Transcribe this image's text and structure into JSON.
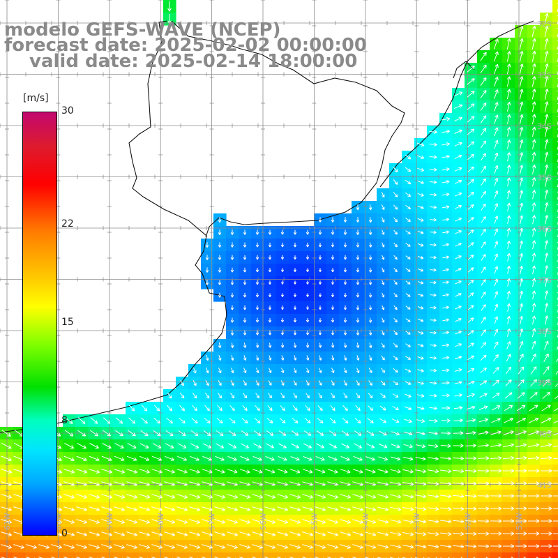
{
  "title": {
    "line1": "modelo GEFS-WAVE (NCEP)",
    "line2": "forecast date: 2025-02-02 00:00:00",
    "line3": "valid date: 2025-02-14 18:00:00"
  },
  "colorbar": {
    "unit": "[m/s]",
    "min": 0,
    "max": 30,
    "ticks": [
      {
        "value": 30,
        "label": "30"
      },
      {
        "value": 22,
        "label": "22"
      },
      {
        "value": 15,
        "label": "15"
      },
      {
        "value": 8,
        "label": "8"
      },
      {
        "value": 0,
        "label": "0"
      }
    ],
    "colors": [
      "#c2076f",
      "#ff0000",
      "#ff7a00",
      "#ffff00",
      "#00e000",
      "#00ffff",
      "#00a6ff",
      "#0000ff"
    ]
  },
  "map": {
    "field": "wind speed and direction",
    "longitude_labels": [
      "61W",
      "60W",
      "59W",
      "58W",
      "57W",
      "56W",
      "55W",
      "54W",
      "53W",
      "52W",
      "51W"
    ],
    "latitude_labels": [
      "32S",
      "33S",
      "34S",
      "35S",
      "36S",
      "37S",
      "38S",
      "39S",
      "40S",
      "41S"
    ],
    "colors": {
      "land": "#ffffff",
      "coast": "#111111",
      "grid": "#8c8c8c",
      "arrow": "#ffffff"
    }
  }
}
